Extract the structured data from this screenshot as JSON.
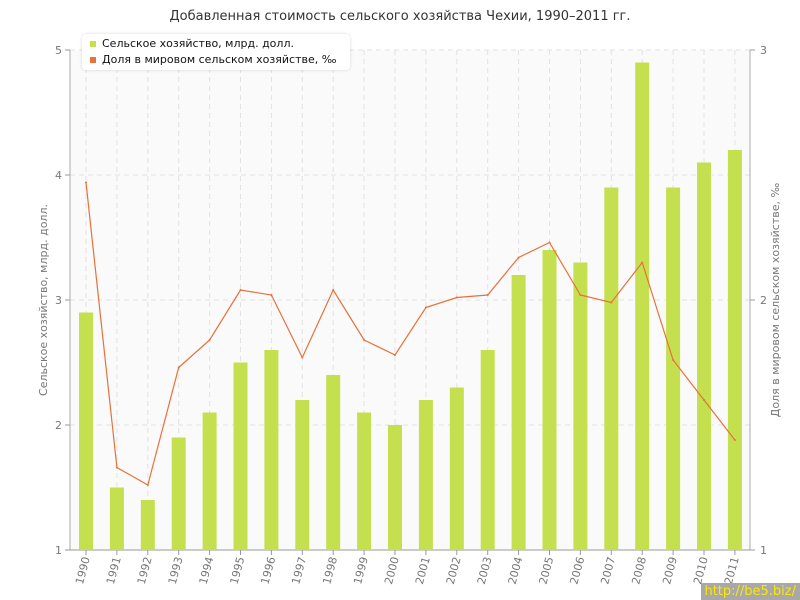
{
  "chart_data": {
    "type": "bar",
    "title": "Добавленная стоимость сельского хозяйства Чехии, 1990–2011 гг.",
    "categories": [
      "1990",
      "1991",
      "1992",
      "1993",
      "1994",
      "1995",
      "1996",
      "1997",
      "1998",
      "1999",
      "2000",
      "2001",
      "2002",
      "2003",
      "2004",
      "2005",
      "2006",
      "2007",
      "2008",
      "2009",
      "2010",
      "2011"
    ],
    "series": [
      {
        "name": "Сельское хозяйство, млрд. долл.",
        "type": "bar",
        "axis": "left",
        "color": "#c5e04f",
        "values": [
          2.9,
          1.5,
          1.4,
          1.9,
          2.1,
          2.5,
          2.6,
          2.2,
          2.4,
          2.1,
          2.0,
          2.2,
          2.3,
          2.6,
          3.2,
          3.4,
          3.3,
          3.9,
          4.9,
          3.9,
          4.1,
          4.2
        ]
      },
      {
        "name": "Доля в мировом сельском хозяйстве, ‰",
        "type": "line",
        "axis": "right",
        "color": "#e8703a",
        "values": [
          2.47,
          1.33,
          1.26,
          1.73,
          1.84,
          2.04,
          2.02,
          1.77,
          2.04,
          1.84,
          1.78,
          1.97,
          2.01,
          2.02,
          2.17,
          2.23,
          2.02,
          1.99,
          2.15,
          1.76,
          1.6,
          1.44
        ]
      }
    ],
    "ylabel": "Сельское хозяйство, млрд. долл.",
    "y2label": "Доля в мировом сельском хозяйстве, ‰",
    "ylim": [
      1,
      5
    ],
    "y2lim": [
      1,
      3
    ],
    "yticks": [
      "1",
      "2",
      "3",
      "4",
      "5"
    ],
    "y2ticks": [
      "1",
      "2",
      "3"
    ],
    "grid": true,
    "legend": "top-left"
  },
  "watermark": "http://be5.biz/"
}
